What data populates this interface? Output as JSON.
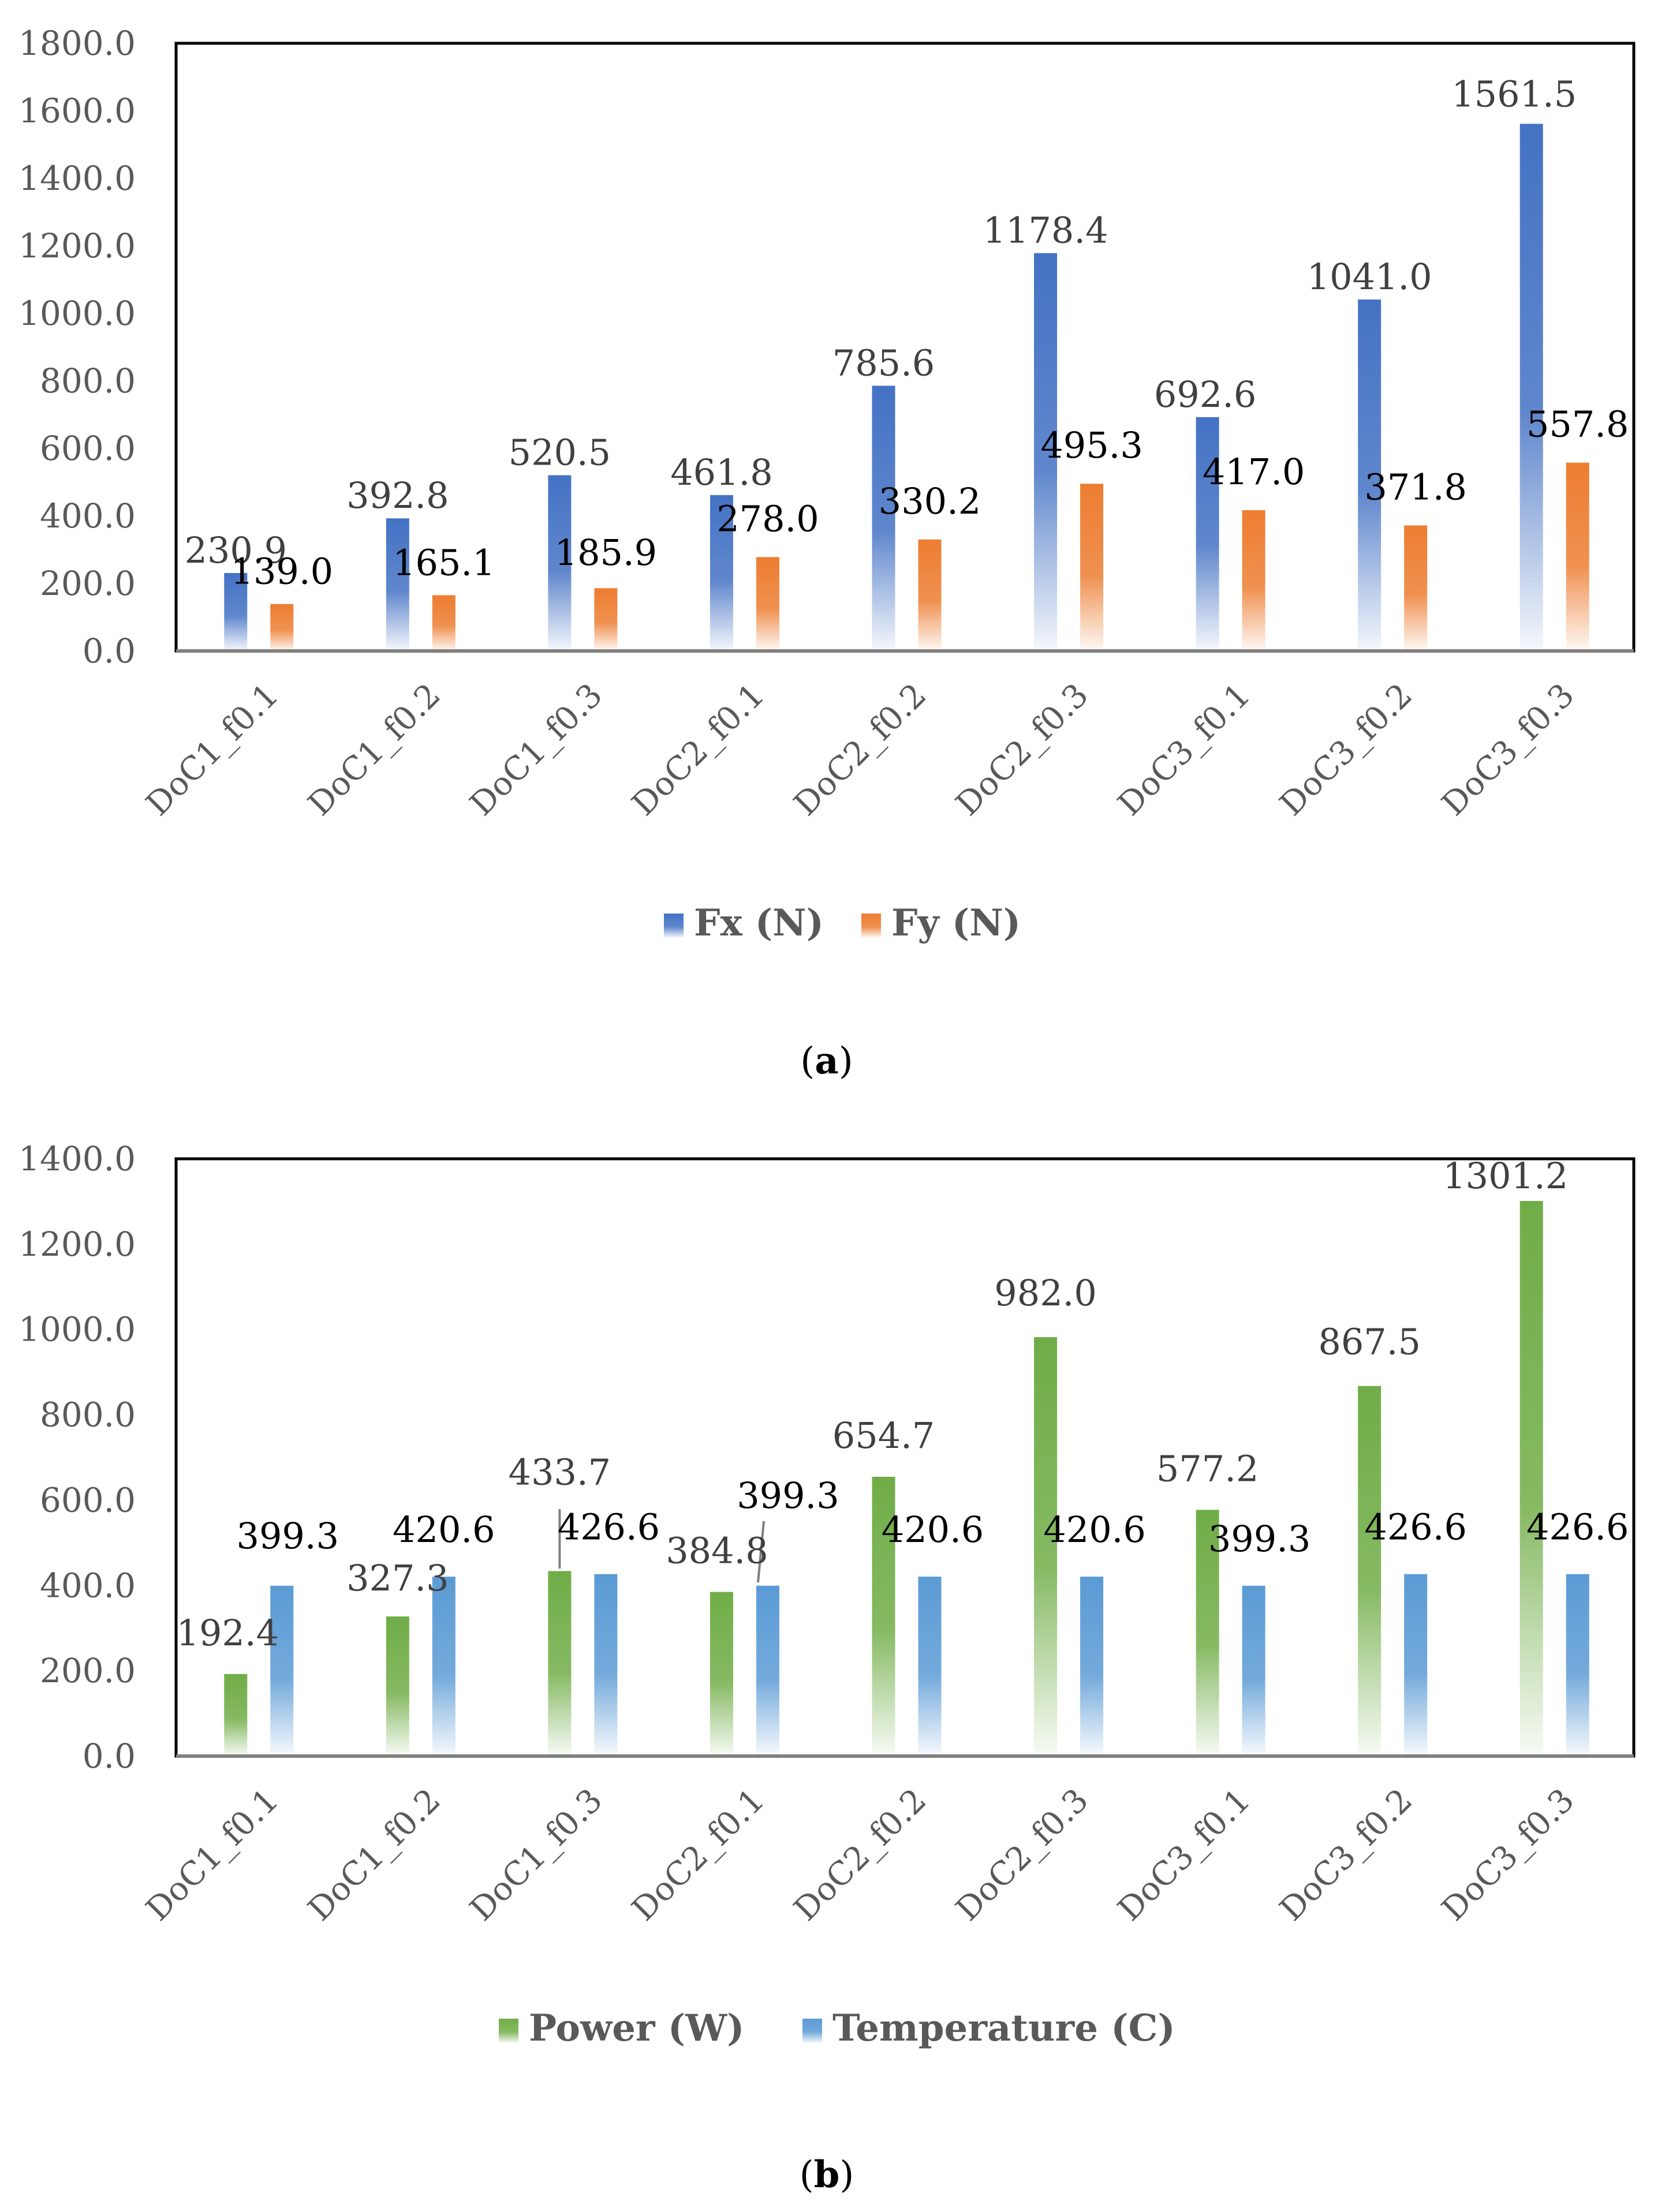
{
  "figure": {
    "panels": [
      {
        "caption_open": "(",
        "caption_label": "a",
        "caption_close": ")"
      },
      {
        "caption_open": "(",
        "caption_label": "b",
        "caption_close": ")"
      }
    ]
  },
  "chart_data": [
    {
      "type": "bar",
      "title": "",
      "xlabel": "",
      "ylabel": "",
      "categories": [
        "DoC1_f0.1",
        "DoC1_f0.2",
        "DoC1_f0.3",
        "DoC2_f0.1",
        "DoC2_f0.2",
        "DoC2_f0.3",
        "DoC3_f0.1",
        "DoC3_f0.2",
        "DoC3_f0.3"
      ],
      "series": [
        {
          "name": "Fx (N)",
          "color": "#4472C4",
          "values": [
            230.9,
            392.8,
            520.5,
            461.8,
            785.6,
            1178.4,
            692.6,
            1041.0,
            1561.5
          ]
        },
        {
          "name": "Fy (N)",
          "color": "#ED7D31",
          "values": [
            139.0,
            165.1,
            185.9,
            278.0,
            330.2,
            495.3,
            417.0,
            371.8,
            557.8
          ]
        }
      ],
      "ylim": [
        0,
        1800
      ],
      "yticks": [
        0,
        200,
        400,
        600,
        800,
        1000,
        1200,
        1400,
        1600,
        1800
      ],
      "ytick_labels": [
        "0.0",
        "200.0",
        "400.0",
        "600.0",
        "800.0",
        "1000.0",
        "1200.0",
        "1400.0",
        "1600.0",
        "1800.0"
      ],
      "grid": false,
      "legend_position": "bottom-center"
    },
    {
      "type": "bar",
      "title": "",
      "xlabel": "",
      "ylabel": "",
      "categories": [
        "DoC1_f0.1",
        "DoC1_f0.2",
        "DoC1_f0.3",
        "DoC2_f0.1",
        "DoC2_f0.2",
        "DoC2_f0.3",
        "DoC3_f0.1",
        "DoC3_f0.2",
        "DoC3_f0.3"
      ],
      "series": [
        {
          "name": "Power (W)",
          "color": "#70AD47",
          "values": [
            192.4,
            327.3,
            433.7,
            384.8,
            654.7,
            982.0,
            577.2,
            867.5,
            1301.2
          ]
        },
        {
          "name": "Temperature (C)",
          "color": "#5B9BD5",
          "values": [
            399.3,
            420.6,
            426.6,
            399.3,
            420.6,
            420.6,
            399.3,
            426.6,
            426.6
          ]
        }
      ],
      "ylim": [
        0,
        1400
      ],
      "yticks": [
        0,
        200,
        400,
        600,
        800,
        1000,
        1200,
        1400
      ],
      "ytick_labels": [
        "0.0",
        "200.0",
        "400.0",
        "600.0",
        "800.0",
        "1000.0",
        "1200.0",
        "1400.0"
      ],
      "grid": false,
      "legend_position": "bottom-center"
    }
  ]
}
